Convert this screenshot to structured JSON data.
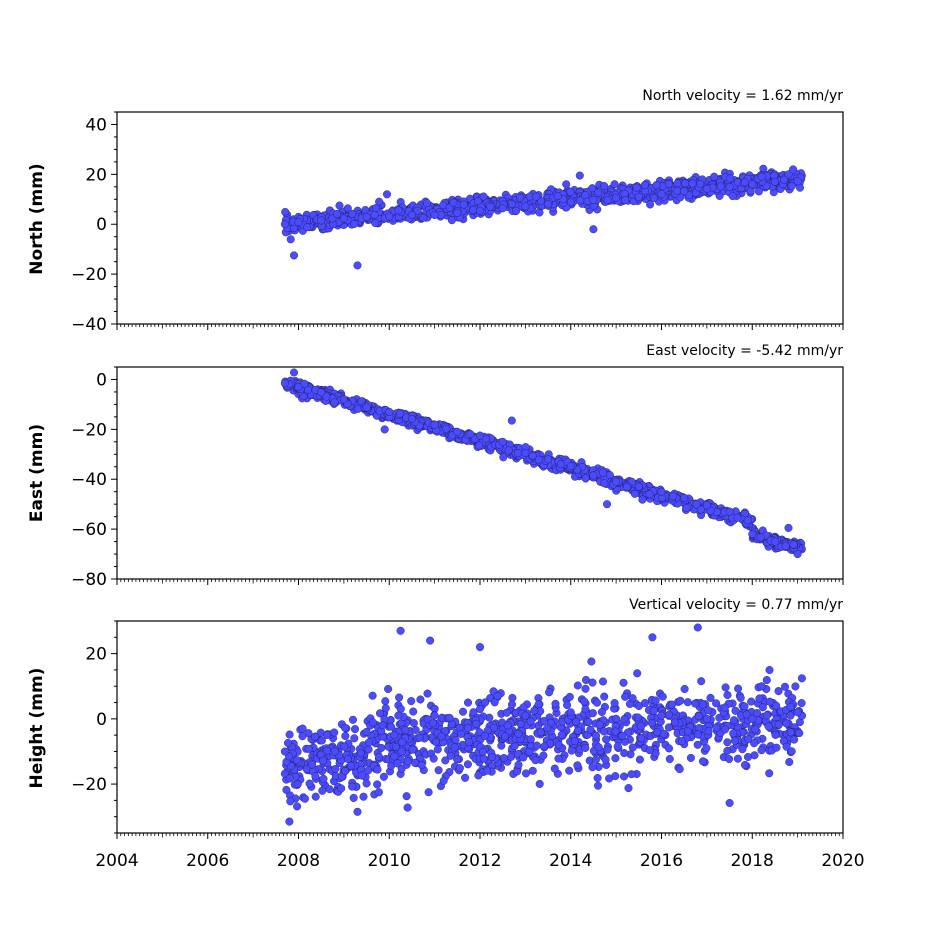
{
  "chart_data": [
    {
      "type": "scatter",
      "title": "North velocity = 1.62 mm/yr",
      "ylabel": "North (mm)",
      "xlim": [
        2004,
        2020
      ],
      "ylim": [
        -40,
        45
      ],
      "yticks": [
        40,
        20,
        0,
        -20,
        -40
      ],
      "ytick_labels": [
        "40",
        "20",
        "0",
        "−20",
        "−40"
      ],
      "series": [
        {
          "marker_color": "#4b4bff",
          "trend": {
            "x_start": 2007.7,
            "y_start": 0,
            "slope": 1.62
          },
          "points": [
            {
              "x": 2007.7,
              "y": 0.0
            },
            {
              "x": 2008.0,
              "y": 0.8
            },
            {
              "x": 2008.5,
              "y": 1.5
            },
            {
              "x": 2009.0,
              "y": 2.3
            },
            {
              "x": 2009.5,
              "y": 3.0
            },
            {
              "x": 2010.0,
              "y": 3.1
            },
            {
              "x": 2010.5,
              "y": 3.7
            },
            {
              "x": 2011.0,
              "y": 3.7
            },
            {
              "x": 2011.5,
              "y": 4.6
            },
            {
              "x": 2012.0,
              "y": 5.4
            },
            {
              "x": 2012.5,
              "y": 6.4
            },
            {
              "x": 2013.0,
              "y": 7.2
            },
            {
              "x": 2013.5,
              "y": 8.0
            },
            {
              "x": 2014.0,
              "y": 8.8
            },
            {
              "x": 2014.5,
              "y": 9.8
            },
            {
              "x": 2015.0,
              "y": 10.6
            },
            {
              "x": 2015.5,
              "y": 11.0
            },
            {
              "x": 2016.0,
              "y": 12.1
            },
            {
              "x": 2016.5,
              "y": 13.2
            },
            {
              "x": 2017.0,
              "y": 14.2
            },
            {
              "x": 2017.5,
              "y": 14.9
            },
            {
              "x": 2018.0,
              "y": 16.0
            },
            {
              "x": 2018.5,
              "y": 17.0
            },
            {
              "x": 2019.0,
              "y": 17.2
            },
            {
              "x": 2007.9,
              "y": -12.5
            },
            {
              "x": 2009.3,
              "y": -16.5
            },
            {
              "x": 2009.95,
              "y": 12.0
            },
            {
              "x": 2014.2,
              "y": 19.5
            },
            {
              "x": 2014.5,
              "y": -2.0
            },
            {
              "x": 2018.9,
              "y": 22.0
            },
            {
              "x": 2013.9,
              "y": 16.0
            }
          ]
        }
      ],
      "noise_sd": 1.8
    },
    {
      "type": "scatter",
      "title": "East velocity = -5.42 mm/yr",
      "ylabel": "East (mm)",
      "xlim": [
        2004,
        2020
      ],
      "ylim": [
        -80,
        5
      ],
      "yticks": [
        0,
        -20,
        -40,
        -60,
        -80
      ],
      "ytick_labels": [
        "0",
        "−20",
        "−40",
        "−60",
        "−80"
      ],
      "series": [
        {
          "marker_color": "#4b4bff",
          "trend": {
            "x_start": 2007.7,
            "y_start": -1.5,
            "slope": -5.42
          },
          "points": [
            {
              "x": 2007.7,
              "y": -1.5
            },
            {
              "x": 2008.0,
              "y": -3.0
            },
            {
              "x": 2008.5,
              "y": -5.2
            },
            {
              "x": 2009.0,
              "y": -8.0
            },
            {
              "x": 2009.5,
              "y": -11.2
            },
            {
              "x": 2010.0,
              "y": -13.0
            },
            {
              "x": 2010.5,
              "y": -15.8
            },
            {
              "x": 2011.0,
              "y": -18.2
            },
            {
              "x": 2011.5,
              "y": -21.0
            },
            {
              "x": 2012.0,
              "y": -22.5
            },
            {
              "x": 2012.5,
              "y": -25.0
            },
            {
              "x": 2013.0,
              "y": -29.5
            },
            {
              "x": 2013.5,
              "y": -32.0
            },
            {
              "x": 2014.0,
              "y": -34.8
            },
            {
              "x": 2014.5,
              "y": -38.5
            },
            {
              "x": 2015.0,
              "y": -41.0
            },
            {
              "x": 2015.5,
              "y": -43.0
            },
            {
              "x": 2016.0,
              "y": -45.0
            },
            {
              "x": 2016.5,
              "y": -47.5
            },
            {
              "x": 2017.0,
              "y": -50.5
            },
            {
              "x": 2017.5,
              "y": -53.0
            },
            {
              "x": 2017.9,
              "y": -56.5
            },
            {
              "x": 2018.0,
              "y": -62.0
            },
            {
              "x": 2018.5,
              "y": -65.0
            },
            {
              "x": 2019.0,
              "y": -70.0
            },
            {
              "x": 2007.9,
              "y": 2.8
            },
            {
              "x": 2009.9,
              "y": -20.0
            },
            {
              "x": 2012.7,
              "y": -16.5
            },
            {
              "x": 2014.8,
              "y": -50.0
            },
            {
              "x": 2018.8,
              "y": -59.5
            }
          ]
        }
      ],
      "noise_sd": 1.2
    },
    {
      "type": "scatter",
      "title": "Vertical velocity = 0.77 mm/yr",
      "ylabel": "Height (mm)",
      "xlim": [
        2004,
        2020
      ],
      "ylim": [
        -35,
        30
      ],
      "yticks": [
        20,
        0,
        -20
      ],
      "ytick_labels": [
        "20",
        "0",
        "−20"
      ],
      "xticks": [
        2004,
        2006,
        2008,
        2010,
        2012,
        2014,
        2016,
        2018,
        2020
      ],
      "xtick_labels": [
        "2004",
        "2006",
        "2008",
        "2010",
        "2012",
        "2014",
        "2016",
        "2018",
        "2020"
      ],
      "series": [
        {
          "marker_color": "#4b4bff",
          "trend": {
            "x_start": 2007.7,
            "y_start": -10.0,
            "slope": 0.77
          },
          "points": [
            {
              "x": 2007.7,
              "y": -10.0
            },
            {
              "x": 2008.3,
              "y": -14.0
            },
            {
              "x": 2008.8,
              "y": -10.0
            },
            {
              "x": 2009.5,
              "y": -4.0
            },
            {
              "x": 2010.2,
              "y": 1.0
            },
            {
              "x": 2011.0,
              "y": 1.0
            },
            {
              "x": 2012.0,
              "y": 3.0
            },
            {
              "x": 2013.0,
              "y": 1.0
            },
            {
              "x": 2014.0,
              "y": 2.0
            },
            {
              "x": 2015.0,
              "y": 0.0
            },
            {
              "x": 2016.0,
              "y": 1.0
            },
            {
              "x": 2017.0,
              "y": 0.0
            },
            {
              "x": 2018.0,
              "y": 0.0
            },
            {
              "x": 2019.0,
              "y": 2.0
            },
            {
              "x": 2007.8,
              "y": -31.5
            },
            {
              "x": 2009.3,
              "y": -28.5
            },
            {
              "x": 2010.25,
              "y": 27.0
            },
            {
              "x": 2010.9,
              "y": 24.0
            },
            {
              "x": 2012.0,
              "y": 22.0
            },
            {
              "x": 2016.8,
              "y": 28.0
            },
            {
              "x": 2017.5,
              "y": -25.8
            },
            {
              "x": 2014.6,
              "y": -20.5
            },
            {
              "x": 2011.2,
              "y": -19.0
            },
            {
              "x": 2015.8,
              "y": 25.0
            }
          ]
        }
      ],
      "noise_sd": 6.0
    }
  ]
}
